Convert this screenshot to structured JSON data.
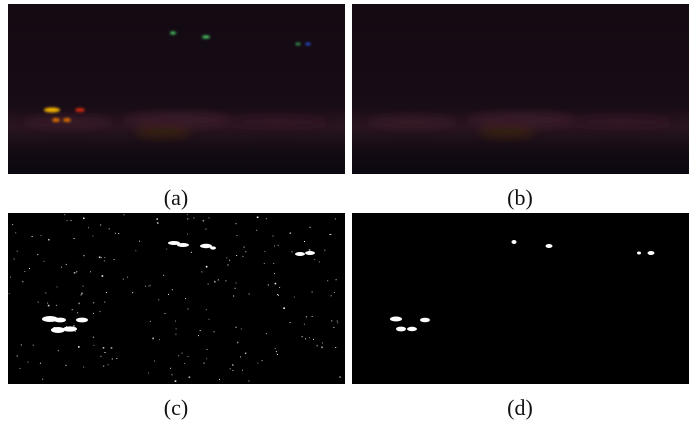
{
  "figure": {
    "panels": [
      {
        "id": "a",
        "caption": "(a)"
      },
      {
        "id": "b",
        "caption": "(b)"
      },
      {
        "id": "c",
        "caption": "(c)"
      },
      {
        "id": "d",
        "caption": "(d)"
      }
    ]
  },
  "colors": {
    "night_sky": "#160b14",
    "horizon_glow": "#2a1520",
    "ground": "#0b0710",
    "light_yellow": "#f2b300",
    "light_red": "#d02c10",
    "light_orange": "#d96d00",
    "light_green": "#4cd86a",
    "light_blue": "#2e5cff",
    "mask_background": "#000000",
    "mask_foreground": "#ffffff"
  }
}
